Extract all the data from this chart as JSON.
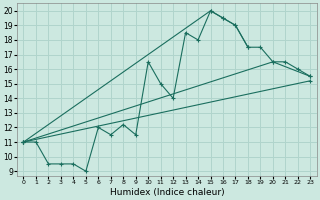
{
  "xlabel": "Humidex (Indice chaleur)",
  "bg_color": "#cce8e0",
  "line_color": "#1a6e5e",
  "grid_color": "#b0d4cc",
  "xlim": [
    -0.5,
    23.5
  ],
  "ylim": [
    8.7,
    20.5
  ],
  "yticks": [
    9,
    10,
    11,
    12,
    13,
    14,
    15,
    16,
    17,
    18,
    19,
    20
  ],
  "xticks": [
    0,
    1,
    2,
    3,
    4,
    5,
    6,
    7,
    8,
    9,
    10,
    11,
    12,
    13,
    14,
    15,
    16,
    17,
    18,
    19,
    20,
    21,
    22,
    23
  ],
  "line1_x": [
    0,
    1,
    2,
    3,
    4,
    5,
    6,
    7,
    8,
    9,
    10,
    11,
    12,
    13,
    14,
    15,
    16,
    17,
    18
  ],
  "line1_y": [
    11,
    11,
    9.5,
    9.5,
    9.5,
    9.0,
    12.0,
    11.5,
    12.2,
    11.5,
    16.5,
    15.0,
    14.0,
    18.5,
    18.0,
    20.0,
    19.5,
    19.0,
    17.5
  ],
  "line2_x": [
    0,
    15,
    16,
    17,
    18,
    19,
    20,
    21,
    22,
    23
  ],
  "line2_y": [
    11,
    20.0,
    19.5,
    19.0,
    17.5,
    17.5,
    16.5,
    16.5,
    16.0,
    15.5
  ],
  "line3_x": [
    0,
    23
  ],
  "line3_y": [
    11,
    15.2
  ],
  "line4_x": [
    0,
    20,
    23
  ],
  "line4_y": [
    11,
    16.5,
    15.5
  ]
}
